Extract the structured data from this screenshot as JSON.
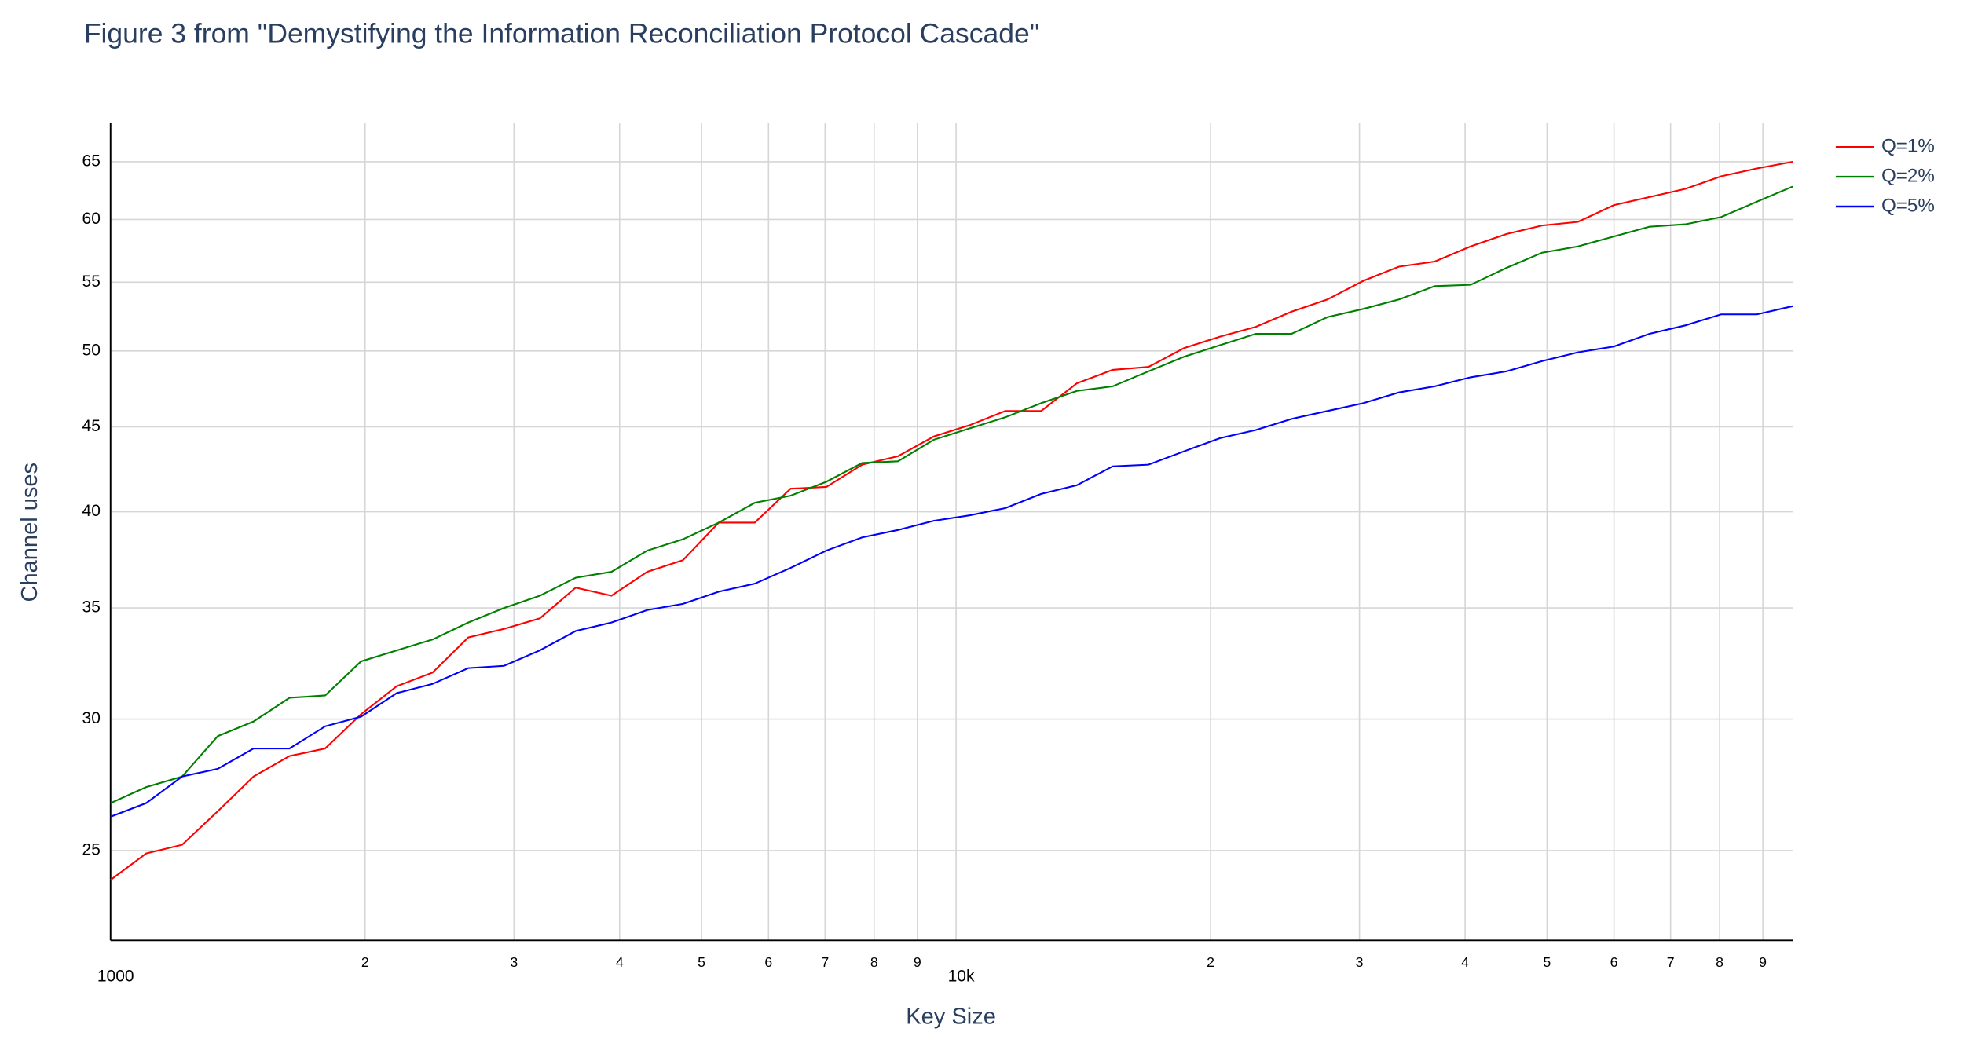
{
  "chart_data": {
    "type": "line",
    "title": "Figure 3 from \"Demystifying the Information Reconciliation Protocol Cascade\"",
    "x_label": "Key Size",
    "y_label": "Channel uses",
    "log_x": true,
    "log_y": true,
    "grid": true,
    "legend": "top-right",
    "x": [
      1000,
      1102,
      1215,
      1339,
      1476,
      1628,
      1794,
      1978,
      2180,
      2403,
      2649,
      2920,
      3219,
      3549,
      3912,
      4312,
      4753,
      5240,
      5780,
      6372,
      7024,
      7744,
      8536,
      9410,
      10373,
      11435,
      12606,
      13897,
      15319,
      16888,
      18617,
      20522,
      22624,
      24940,
      27494,
      30308,
      33411,
      36831,
      40603,
      44758,
      49340,
      54390,
      59960,
      66097,
      72865,
      80322,
      88550,
      97600
    ],
    "series": [
      {
        "name": "Q=1%",
        "color": "#ff0000",
        "values": [
          24.0,
          24.9,
          25.2,
          26.4,
          27.7,
          28.5,
          28.8,
          30.2,
          31.4,
          32.0,
          33.6,
          34.0,
          34.5,
          36.0,
          35.6,
          36.8,
          37.4,
          39.4,
          39.4,
          41.3,
          41.4,
          42.7,
          43.2,
          44.4,
          45.1,
          46.0,
          46.0,
          47.8,
          48.7,
          48.9,
          50.2,
          51.0,
          51.7,
          52.8,
          53.7,
          55.1,
          56.2,
          56.6,
          57.8,
          58.8,
          59.5,
          59.8,
          61.2,
          61.9,
          62.6,
          63.7,
          64.4,
          65.0
        ]
      },
      {
        "name": "Q=2%",
        "color": "#008000",
        "values": [
          26.7,
          27.3,
          27.7,
          29.3,
          29.9,
          30.9,
          31.0,
          32.5,
          33.0,
          33.5,
          34.3,
          35.0,
          35.6,
          36.5,
          36.8,
          37.9,
          38.5,
          39.4,
          40.5,
          40.9,
          41.7,
          42.8,
          42.9,
          44.2,
          44.9,
          45.6,
          46.5,
          47.3,
          47.6,
          48.6,
          49.6,
          50.4,
          51.2,
          51.2,
          52.4,
          53.0,
          53.7,
          54.7,
          54.8,
          56.1,
          57.3,
          57.8,
          58.6,
          59.4,
          59.6,
          60.2,
          61.5,
          62.8
        ]
      },
      {
        "name": "Q=5%",
        "color": "#0000ff",
        "values": [
          26.2,
          26.7,
          27.7,
          28.0,
          28.8,
          28.8,
          29.7,
          30.1,
          31.1,
          31.5,
          32.2,
          32.3,
          33.0,
          33.9,
          34.3,
          34.9,
          35.2,
          35.8,
          36.2,
          37.0,
          37.9,
          38.6,
          39.0,
          39.5,
          39.8,
          40.2,
          41.0,
          41.5,
          42.6,
          42.7,
          43.5,
          44.3,
          44.8,
          45.5,
          46.0,
          46.5,
          47.2,
          47.6,
          48.2,
          48.6,
          49.3,
          49.9,
          50.3,
          51.2,
          51.8,
          52.6,
          52.6,
          53.2
        ]
      }
    ],
    "xlim": [
      1000,
      97600
    ],
    "ylim": [
      22.07,
      68.6
    ],
    "xticks": [
      {
        "value": 1000,
        "label": "1000"
      },
      {
        "value": 2000,
        "label": "2"
      },
      {
        "value": 3000,
        "label": "3"
      },
      {
        "value": 4000,
        "label": "4"
      },
      {
        "value": 5000,
        "label": "5"
      },
      {
        "value": 6000,
        "label": "6"
      },
      {
        "value": 7000,
        "label": "7"
      },
      {
        "value": 8000,
        "label": "8"
      },
      {
        "value": 9000,
        "label": "9"
      },
      {
        "value": 10000,
        "label": "10k"
      },
      {
        "value": 20000,
        "label": "2"
      },
      {
        "value": 30000,
        "label": "3"
      },
      {
        "value": 40000,
        "label": "4"
      },
      {
        "value": 50000,
        "label": "5"
      },
      {
        "value": 60000,
        "label": "6"
      },
      {
        "value": 70000,
        "label": "7"
      },
      {
        "value": 80000,
        "label": "8"
      },
      {
        "value": 90000,
        "label": "9"
      }
    ],
    "yticks": [
      25,
      30,
      35,
      40,
      45,
      50,
      55,
      60,
      65
    ]
  }
}
